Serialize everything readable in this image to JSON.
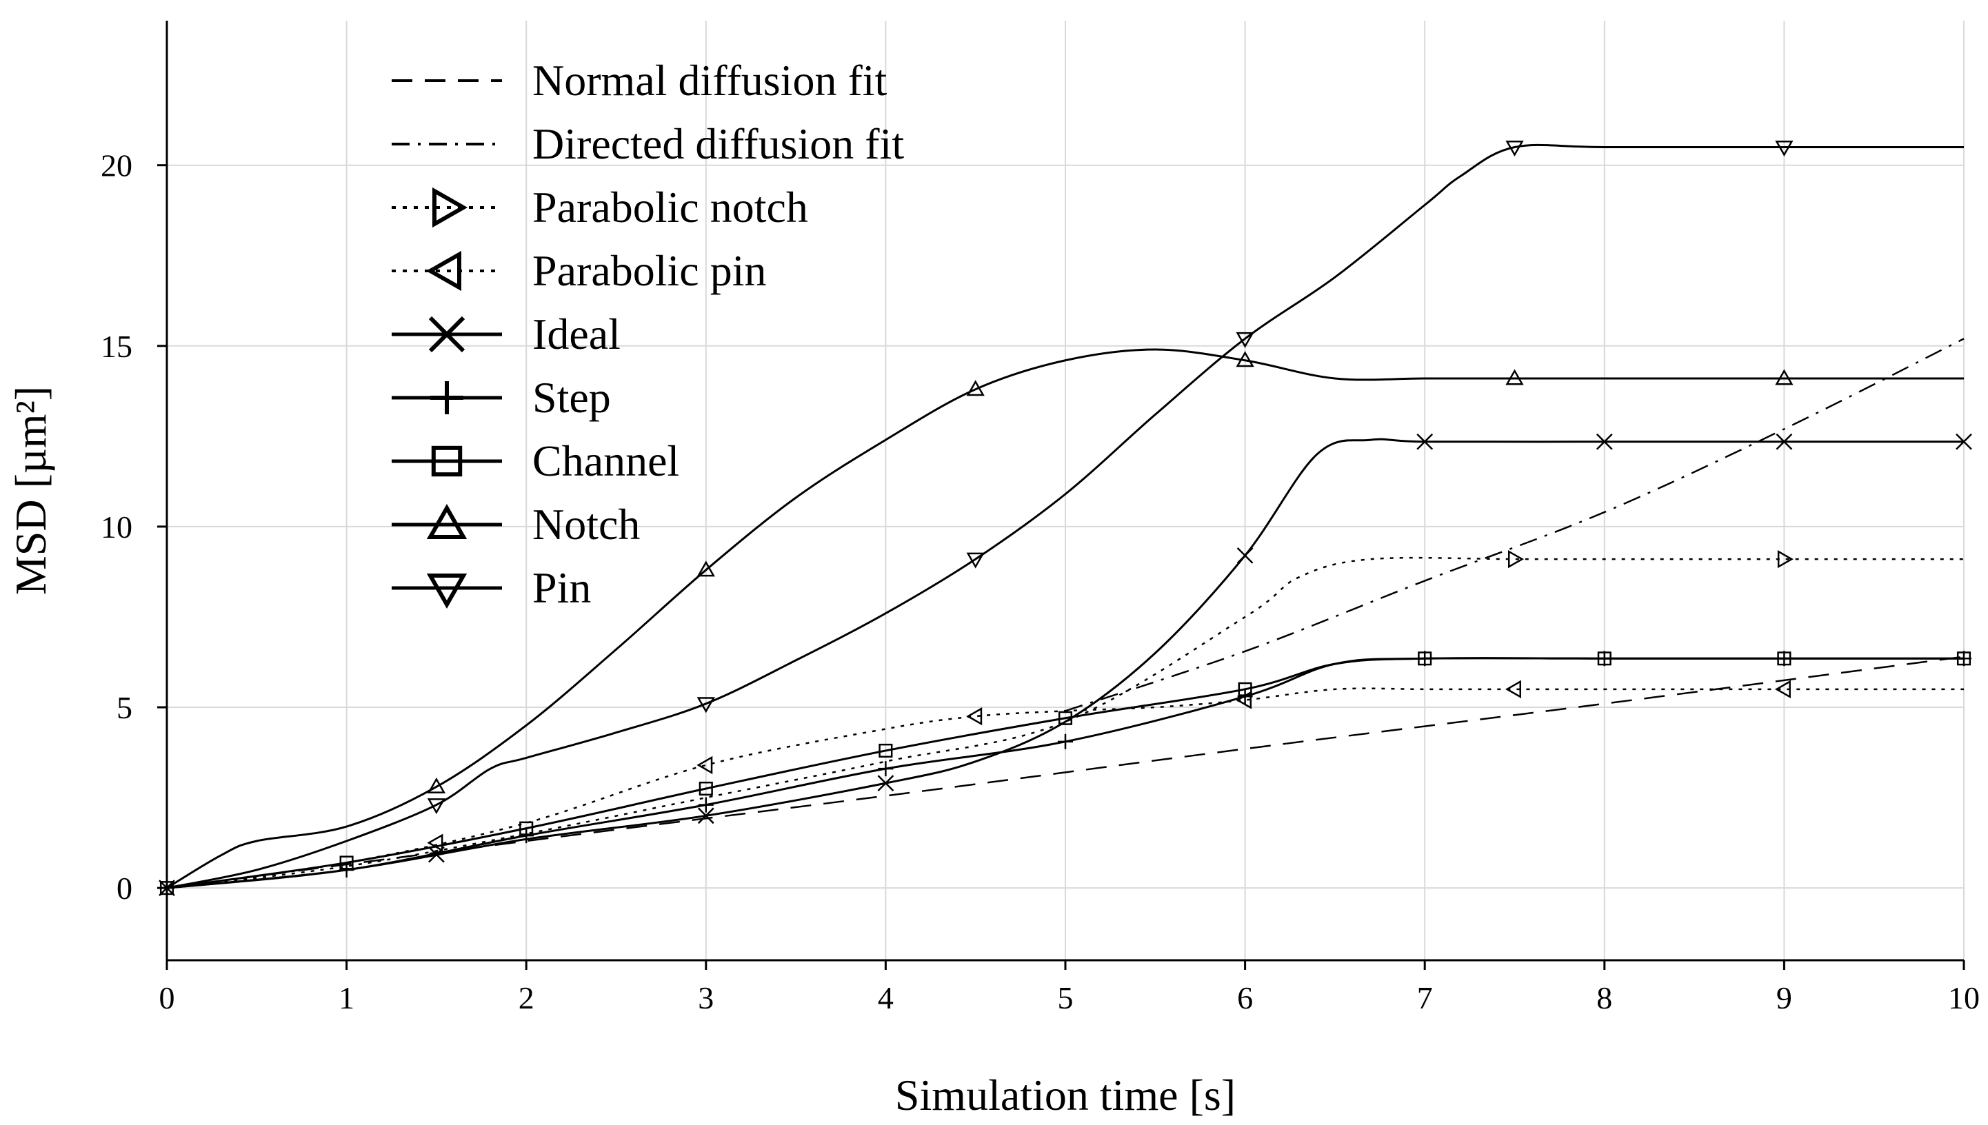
{
  "chart_data": {
    "type": "line",
    "xlabel": "Simulation time [s]",
    "ylabel": "MSD [µm²]",
    "xlim": [
      0,
      10
    ],
    "ylim": [
      -2,
      24
    ],
    "xticks": [
      0,
      1,
      2,
      3,
      4,
      5,
      6,
      7,
      8,
      9,
      10
    ],
    "yticks": [
      0,
      5,
      10,
      15,
      20
    ],
    "grid": true,
    "legend_position": "top-left",
    "series": [
      {
        "name": "Normal diffusion fit",
        "style": "dashed",
        "marker": "none",
        "x": [
          0,
          2,
          4,
          6,
          8,
          10
        ],
        "y": [
          0,
          1.3,
          2.55,
          3.85,
          5.1,
          6.4
        ]
      },
      {
        "name": "Directed diffusion fit",
        "style": "dashdot",
        "marker": "none",
        "x": [
          5,
          6,
          7,
          8,
          9,
          10
        ],
        "y": [
          4.9,
          6.55,
          8.5,
          10.4,
          12.7,
          15.2
        ]
      },
      {
        "name": "Parabolic notch",
        "style": "dotted",
        "marker": "triangle-right",
        "x": [
          0,
          1,
          2,
          3,
          4,
          5,
          6,
          6.3,
          6.7,
          7.5,
          8,
          9,
          10
        ],
        "y": [
          0,
          0.6,
          1.5,
          2.5,
          3.5,
          4.6,
          7.5,
          8.6,
          9.1,
          9.1,
          9.1,
          9.1,
          9.1
        ],
        "marker_x": [
          7.5,
          9
        ]
      },
      {
        "name": "Parabolic pin",
        "style": "dotted",
        "marker": "triangle-left",
        "x": [
          0,
          1,
          2,
          3,
          4,
          4.5,
          5,
          5.5,
          6,
          6.5,
          7,
          7.5,
          8,
          9,
          10
        ],
        "y": [
          0,
          0.7,
          1.8,
          3.4,
          4.4,
          4.75,
          4.9,
          5.0,
          5.2,
          5.5,
          5.5,
          5.5,
          5.5,
          5.5,
          5.5
        ],
        "marker_x": [
          1.5,
          3,
          4.5,
          6,
          7.5,
          9
        ]
      },
      {
        "name": "Ideal",
        "style": "solid",
        "marker": "x",
        "x": [
          0,
          1,
          2,
          3,
          4,
          4.5,
          5,
          5.5,
          6,
          6.4,
          6.7,
          7,
          8,
          9,
          10
        ],
        "y": [
          0,
          0.5,
          1.35,
          2.0,
          2.9,
          3.5,
          4.6,
          6.5,
          9.2,
          12.0,
          12.4,
          12.35,
          12.35,
          12.35,
          12.35
        ],
        "marker_x": [
          0,
          1.5,
          3,
          4,
          6,
          7,
          8,
          9,
          10
        ]
      },
      {
        "name": "Step",
        "style": "solid",
        "marker": "plus",
        "x": [
          0,
          1,
          2,
          3,
          4,
          5,
          6,
          6.5,
          7,
          8,
          9,
          10
        ],
        "y": [
          0,
          0.5,
          1.45,
          2.3,
          3.3,
          4.05,
          5.3,
          6.2,
          6.35,
          6.35,
          6.35,
          6.35
        ],
        "marker_x": [
          0,
          1,
          2,
          3,
          4,
          5,
          6,
          7,
          8,
          9,
          10
        ]
      },
      {
        "name": "Channel",
        "style": "solid",
        "marker": "square",
        "x": [
          0,
          1,
          2,
          3,
          4,
          5,
          6,
          6.5,
          7,
          8,
          9,
          10
        ],
        "y": [
          0,
          0.7,
          1.65,
          2.75,
          3.8,
          4.7,
          5.5,
          6.2,
          6.35,
          6.35,
          6.35,
          6.35
        ],
        "marker_x": [
          0,
          1,
          2,
          3,
          4,
          5,
          6,
          7,
          8,
          9,
          10
        ]
      },
      {
        "name": "Notch",
        "style": "solid",
        "marker": "triangle-up",
        "x": [
          0,
          0.3,
          0.5,
          1,
          1.5,
          2,
          2.5,
          3,
          3.5,
          4,
          4.5,
          5,
          5.5,
          6,
          6.5,
          7,
          7.5,
          8,
          9,
          10
        ],
        "y": [
          0,
          0.9,
          1.3,
          1.7,
          2.8,
          4.5,
          6.6,
          8.8,
          10.8,
          12.4,
          13.8,
          14.6,
          14.9,
          14.6,
          14.1,
          14.1,
          14.1,
          14.1,
          14.1,
          14.1
        ],
        "marker_x": [
          1.5,
          3,
          4.5,
          6,
          7.5,
          9
        ]
      },
      {
        "name": "Pin",
        "style": "solid",
        "marker": "triangle-down",
        "x": [
          0,
          0.5,
          1,
          1.5,
          1.8,
          2,
          2.5,
          3,
          3.5,
          4,
          4.5,
          5,
          5.5,
          6,
          6.5,
          7,
          7.2,
          7.5,
          8,
          9,
          10
        ],
        "y": [
          0,
          0.5,
          1.3,
          2.3,
          3.3,
          3.6,
          4.3,
          5.1,
          6.3,
          7.6,
          9.1,
          10.9,
          13.1,
          15.2,
          16.9,
          18.9,
          19.7,
          20.5,
          20.5,
          20.5,
          20.5
        ],
        "marker_x": [
          1.5,
          3,
          4.5,
          6,
          7.5,
          9
        ]
      }
    ]
  }
}
